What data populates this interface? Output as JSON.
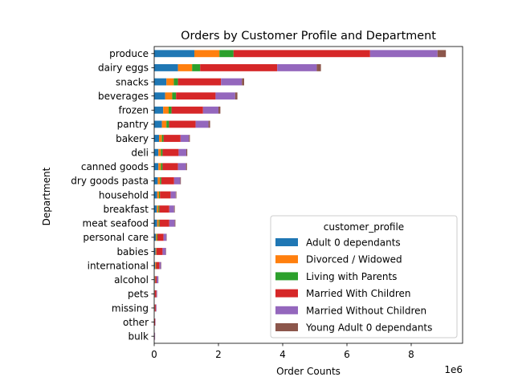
{
  "chart_data": {
    "type": "bar",
    "orientation": "horizontal",
    "stacked": true,
    "title": "Orders by Customer Profile and Department",
    "xlabel": "Order Counts",
    "ylabel": "Department",
    "x_multiplier_label": "1e6",
    "xlim": [
      0,
      9.6
    ],
    "xticks": [
      0,
      2,
      4,
      6,
      8
    ],
    "grid": false,
    "legend": {
      "title": "customer_profile",
      "position": "lower-right"
    },
    "categories": [
      "produce",
      "dairy eggs",
      "snacks",
      "beverages",
      "frozen",
      "pantry",
      "bakery",
      "deli",
      "canned goods",
      "dry goods pasta",
      "household",
      "breakfast",
      "meat seafood",
      "personal care",
      "babies",
      "international",
      "alcohol",
      "pets",
      "missing",
      "other",
      "bulk"
    ],
    "series": [
      {
        "name": "Adult 0 dependants",
        "color": "#1f77b4",
        "values": [
          1.25,
          0.74,
          0.38,
          0.34,
          0.28,
          0.24,
          0.15,
          0.13,
          0.13,
          0.11,
          0.09,
          0.08,
          0.09,
          0.05,
          0.04,
          0.03,
          0.02,
          0.01,
          0.01,
          0.005,
          0.004
        ]
      },
      {
        "name": "Divorced / Widowed",
        "color": "#ff7f0e",
        "values": [
          0.78,
          0.44,
          0.23,
          0.22,
          0.17,
          0.14,
          0.09,
          0.08,
          0.08,
          0.07,
          0.06,
          0.05,
          0.05,
          0.03,
          0.02,
          0.02,
          0.01,
          0.005,
          0.005,
          0.003,
          0.002
        ]
      },
      {
        "name": "Living with Parents",
        "color": "#2ca02c",
        "values": [
          0.44,
          0.25,
          0.13,
          0.12,
          0.09,
          0.08,
          0.05,
          0.05,
          0.05,
          0.04,
          0.03,
          0.03,
          0.03,
          0.02,
          0.01,
          0.01,
          0.005,
          0.003,
          0.003,
          0.002,
          0.001
        ]
      },
      {
        "name": "Married With Children",
        "color": "#d62728",
        "values": [
          4.25,
          2.4,
          1.34,
          1.23,
          0.98,
          0.83,
          0.53,
          0.5,
          0.48,
          0.4,
          0.33,
          0.31,
          0.3,
          0.19,
          0.19,
          0.1,
          0.04,
          0.05,
          0.03,
          0.02,
          0.01
        ]
      },
      {
        "name": "Married Without Children",
        "color": "#9467bd",
        "values": [
          2.1,
          1.23,
          0.65,
          0.61,
          0.48,
          0.4,
          0.26,
          0.24,
          0.25,
          0.19,
          0.16,
          0.15,
          0.17,
          0.09,
          0.1,
          0.05,
          0.05,
          0.02,
          0.02,
          0.01,
          0.01
        ]
      },
      {
        "name": "Young Adult 0 dependants",
        "color": "#8c564b",
        "values": [
          0.26,
          0.13,
          0.07,
          0.07,
          0.06,
          0.05,
          0.03,
          0.03,
          0.03,
          0.02,
          0.02,
          0.02,
          0.02,
          0.01,
          0.01,
          0.01,
          0.005,
          0.003,
          0.003,
          0.002,
          0.001
        ]
      }
    ]
  }
}
